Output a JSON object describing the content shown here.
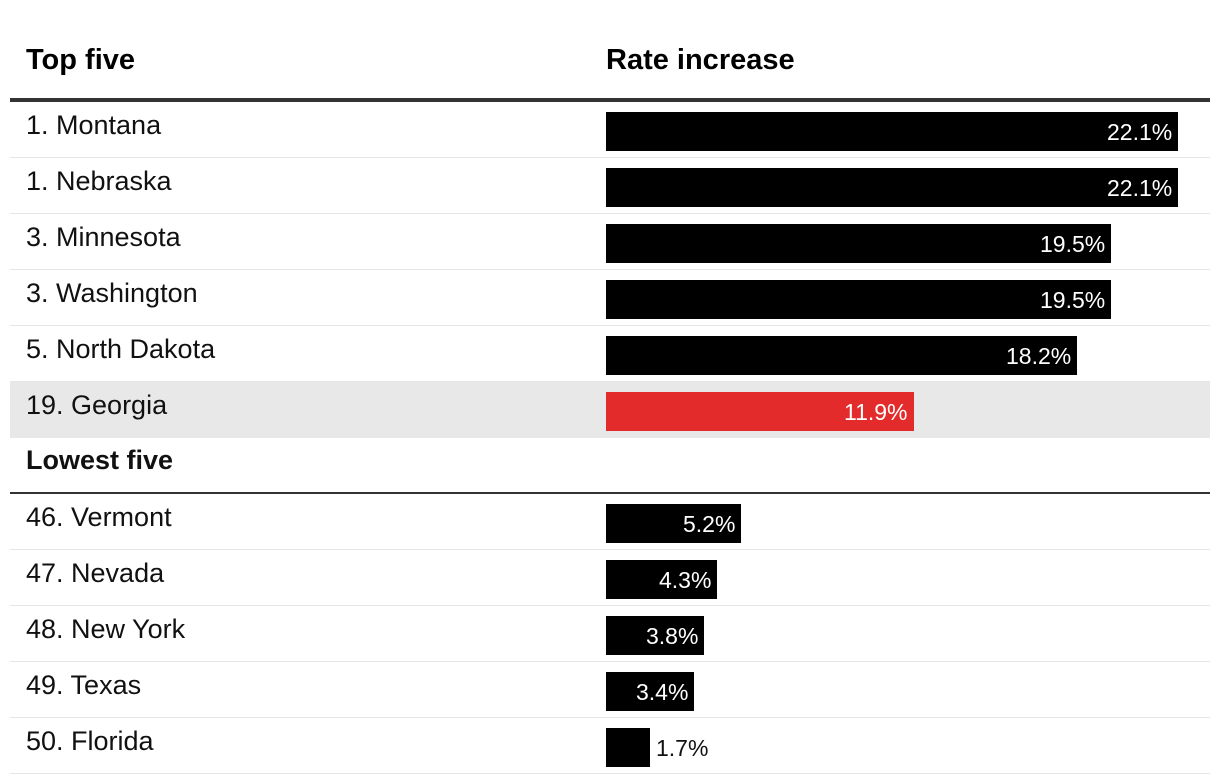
{
  "colors": {
    "bar": "#000000",
    "highlight": "#e32b2b",
    "value_text_inside": "#ffffff",
    "value_text_outside": "#111111"
  },
  "chart_data": {
    "type": "bar",
    "orientation": "horizontal",
    "columns": [
      "Top five",
      "Rate increase"
    ],
    "section_label": "Lowest five",
    "unit": "%",
    "xlim": [
      0,
      22.1
    ],
    "rows": [
      {
        "label": "1. Montana",
        "value": 22.1,
        "text": "22.1%",
        "section": "top"
      },
      {
        "label": "1. Nebraska",
        "value": 22.1,
        "text": "22.1%",
        "section": "top"
      },
      {
        "label": "3. Minnesota",
        "value": 19.5,
        "text": "19.5%",
        "section": "top"
      },
      {
        "label": "3. Washington",
        "value": 19.5,
        "text": "19.5%",
        "section": "top"
      },
      {
        "label": "5. North Dakota",
        "value": 18.2,
        "text": "18.2%",
        "section": "top"
      },
      {
        "label": "19. Georgia",
        "value": 11.9,
        "text": "11.9%",
        "section": "top",
        "highlight": true
      },
      {
        "label": "46. Vermont",
        "value": 5.2,
        "text": "5.2%",
        "section": "lowest"
      },
      {
        "label": "47. Nevada",
        "value": 4.3,
        "text": "4.3%",
        "section": "lowest"
      },
      {
        "label": "48. New York",
        "value": 3.8,
        "text": "3.8%",
        "section": "lowest"
      },
      {
        "label": "49. Texas",
        "value": 3.4,
        "text": "3.4%",
        "section": "lowest"
      },
      {
        "label": "50. Florida",
        "value": 1.7,
        "text": "1.7%",
        "section": "lowest"
      }
    ]
  }
}
